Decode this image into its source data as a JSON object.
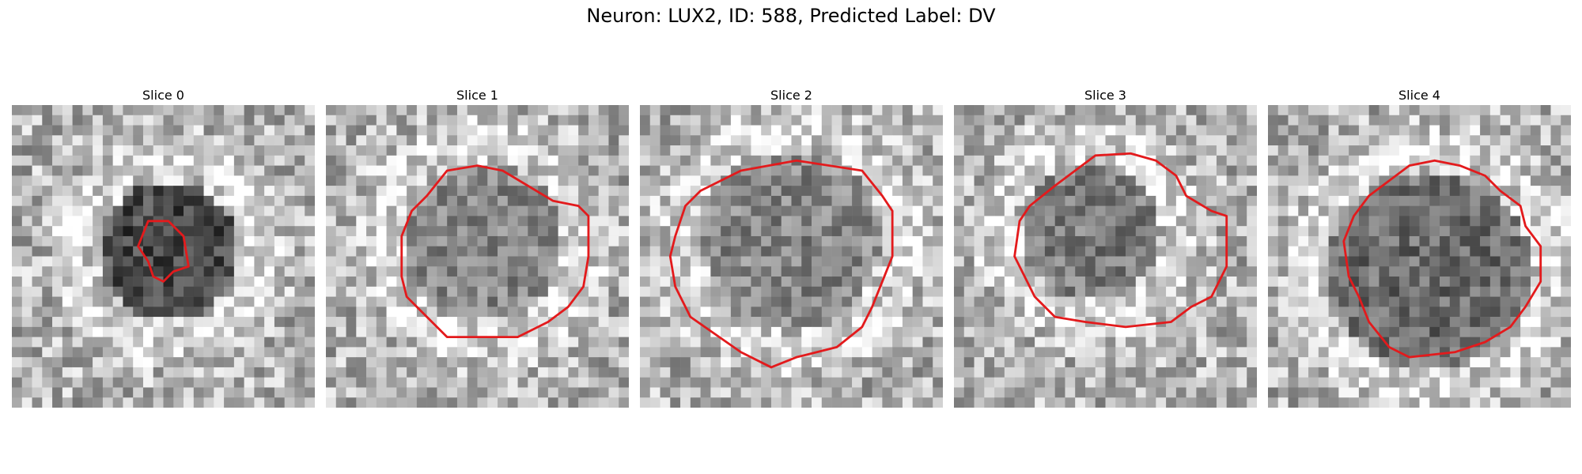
{
  "figure": {
    "title": "Neuron: LUX2, ID: 588, Predicted Label: DV"
  },
  "grid_size": 30,
  "panels": [
    {
      "title": "Slice 0",
      "seed": 11,
      "blob": {
        "cx": 15,
        "cy": 14,
        "r": 7,
        "depth": 0.1
      },
      "contour_color": "#e31a1c",
      "contour": [
        [
          13.5,
          11.5
        ],
        [
          15.5,
          11.5
        ],
        [
          17,
          13
        ],
        [
          17.5,
          16
        ],
        [
          16,
          16.5
        ],
        [
          15,
          17.5
        ],
        [
          14,
          17
        ],
        [
          13.5,
          15.5
        ],
        [
          12.5,
          14
        ]
      ]
    },
    {
      "title": "Slice 1",
      "seed": 23,
      "blob": {
        "cx": 15,
        "cy": 13,
        "r": 8,
        "depth": 0.35
      },
      "contour_color": "#e31a1c",
      "contour": [
        [
          12,
          6.5
        ],
        [
          15,
          6
        ],
        [
          17.5,
          6.5
        ],
        [
          20,
          8
        ],
        [
          22.5,
          9.5
        ],
        [
          25,
          10
        ],
        [
          26,
          11
        ],
        [
          26,
          15
        ],
        [
          25.5,
          18
        ],
        [
          24,
          20
        ],
        [
          22,
          21.5
        ],
        [
          19,
          23
        ],
        [
          16,
          23
        ],
        [
          12,
          23
        ],
        [
          10,
          21
        ],
        [
          8,
          19
        ],
        [
          7.5,
          17
        ],
        [
          7.5,
          13
        ],
        [
          8.5,
          10.5
        ],
        [
          10,
          9
        ],
        [
          12,
          6.5
        ]
      ]
    },
    {
      "title": "Slice 2",
      "seed": 37,
      "blob": {
        "cx": 14.5,
        "cy": 13,
        "r": 9,
        "depth": 0.35
      },
      "contour_color": "#e31a1c",
      "contour": [
        [
          10,
          6.5
        ],
        [
          15.5,
          5.5
        ],
        [
          22,
          6.5
        ],
        [
          24,
          9
        ],
        [
          25,
          10.5
        ],
        [
          25,
          15
        ],
        [
          24,
          17.5
        ],
        [
          23,
          20
        ],
        [
          22,
          22
        ],
        [
          19.5,
          24
        ],
        [
          15.5,
          25
        ],
        [
          13,
          26
        ],
        [
          10,
          24.5
        ],
        [
          5,
          21
        ],
        [
          3.5,
          18
        ],
        [
          3,
          15
        ],
        [
          3.5,
          13
        ],
        [
          4.5,
          10
        ],
        [
          6,
          8.5
        ],
        [
          10,
          6.5
        ]
      ]
    },
    {
      "title": "Slice 3",
      "seed": 53,
      "blob": {
        "cx": 13,
        "cy": 12,
        "r": 7,
        "depth": 0.3
      },
      "contour_color": "#e31a1c",
      "contour": [
        [
          14,
          5
        ],
        [
          17.5,
          4.8
        ],
        [
          20,
          5.5
        ],
        [
          22,
          7
        ],
        [
          23,
          9
        ],
        [
          25.5,
          10.5
        ],
        [
          27,
          11
        ],
        [
          27,
          16
        ],
        [
          25.5,
          19
        ],
        [
          23.5,
          20
        ],
        [
          21.5,
          21.5
        ],
        [
          17,
          22
        ],
        [
          13,
          21.5
        ],
        [
          10,
          21
        ],
        [
          8,
          19
        ],
        [
          7,
          17
        ],
        [
          6,
          15
        ],
        [
          6.5,
          11.5
        ],
        [
          7.5,
          10
        ],
        [
          10,
          8
        ],
        [
          12,
          6.5
        ],
        [
          14,
          5
        ]
      ]
    },
    {
      "title": "Slice 4",
      "seed": 71,
      "blob": {
        "cx": 15.5,
        "cy": 16,
        "r": 10,
        "depth": 0.25
      },
      "contour_color": "#e31a1c",
      "contour": [
        [
          14,
          6
        ],
        [
          16.5,
          5.5
        ],
        [
          19,
          6
        ],
        [
          21.5,
          7
        ],
        [
          23,
          8.5
        ],
        [
          25,
          10
        ],
        [
          25.5,
          12
        ],
        [
          27,
          14
        ],
        [
          27,
          17.5
        ],
        [
          25.5,
          20
        ],
        [
          24,
          22
        ],
        [
          21.5,
          23.5
        ],
        [
          18.5,
          24.5
        ],
        [
          14,
          25
        ],
        [
          12,
          24
        ],
        [
          10,
          21.5
        ],
        [
          9,
          19
        ],
        [
          8,
          17
        ],
        [
          7.5,
          13.5
        ],
        [
          8.5,
          11
        ],
        [
          10,
          9
        ],
        [
          12,
          7.5
        ],
        [
          14,
          6
        ]
      ]
    }
  ]
}
